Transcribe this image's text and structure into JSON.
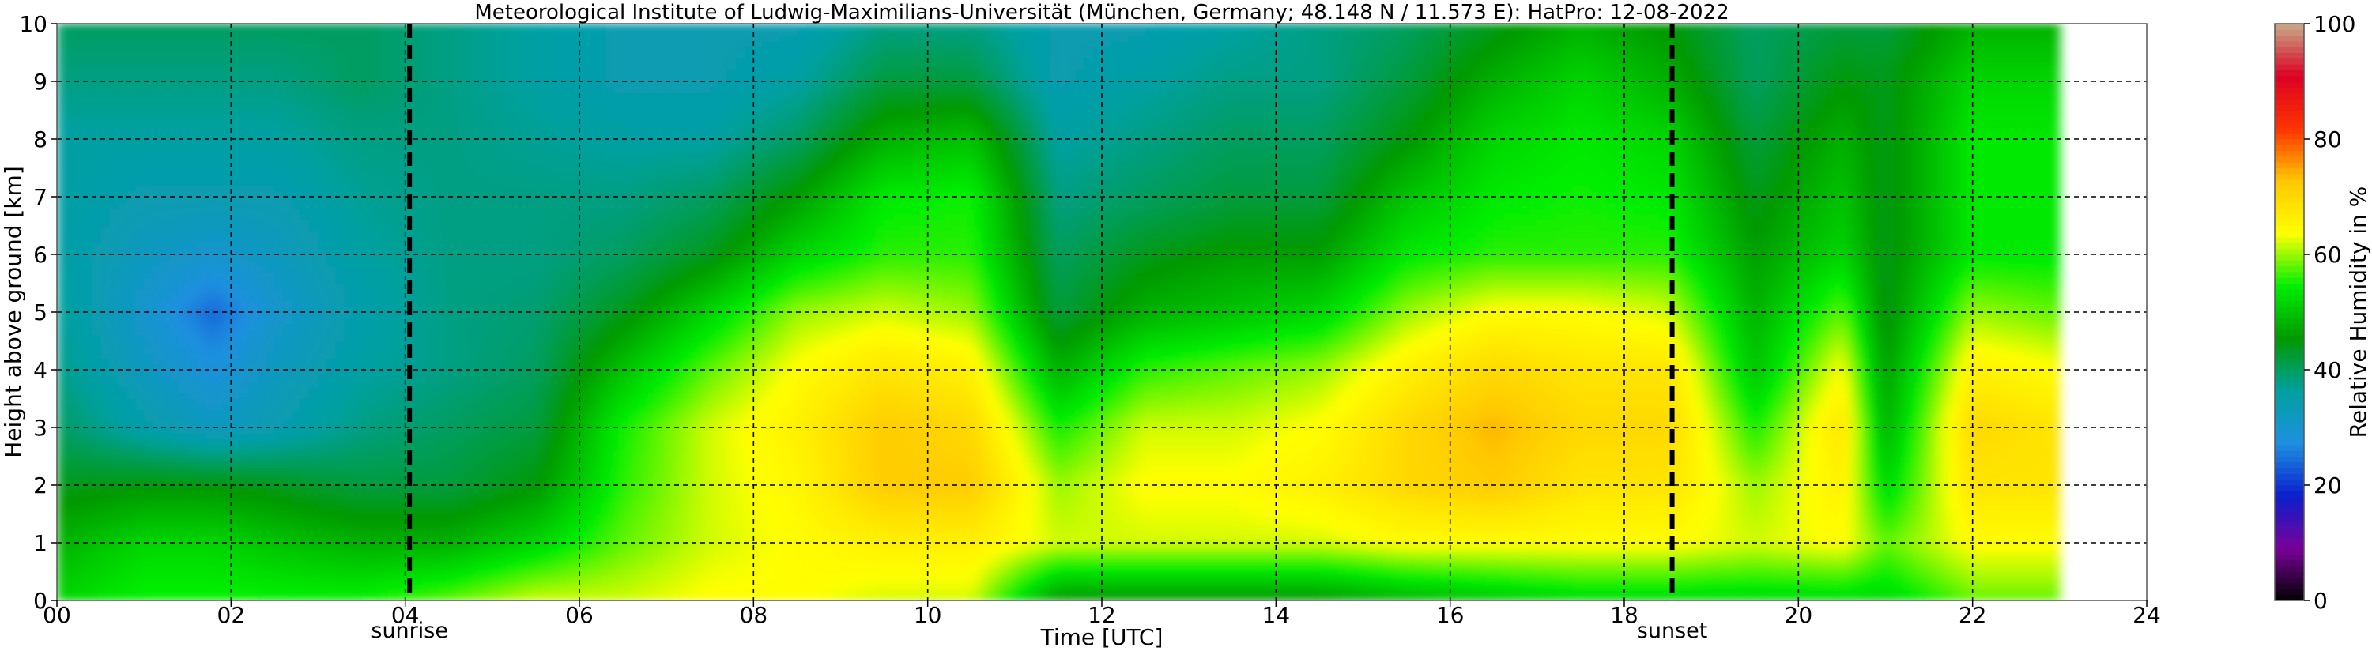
{
  "chart_data": {
    "type": "heatmap",
    "title": "Meteorological Institute of Ludwig-Maximilians-Universität (München, Germany; 48.148 N / 11.573 E):    HatPro: 12-08-2022",
    "xlabel": "Time [UTC]",
    "ylabel": "Height above ground [km]",
    "xlim": [
      0,
      24
    ],
    "ylim": [
      0,
      10
    ],
    "data_end_time": 23,
    "x_ticks": [
      "00",
      "02",
      "04",
      "06",
      "08",
      "10",
      "12",
      "14",
      "16",
      "18",
      "20",
      "22",
      "24"
    ],
    "y_ticks": [
      "0",
      "1",
      "2",
      "3",
      "4",
      "5",
      "6",
      "7",
      "8",
      "9",
      "10"
    ],
    "grid": true,
    "colorbar": {
      "label": "Relative Humidity in %",
      "range": [
        0,
        100
      ],
      "ticks": [
        "0",
        "20",
        "40",
        "60",
        "80",
        "100"
      ],
      "colors": [
        "#000000",
        "#7a0099",
        "#0a1fcc",
        "#1e90e0",
        "#00a0a0",
        "#009900",
        "#00ee00",
        "#ffff00",
        "#ffc800",
        "#ff3300",
        "#dd0022",
        "#c8aa88"
      ]
    },
    "events": [
      {
        "name": "sunrise",
        "time": 4.05
      },
      {
        "name": "sunset",
        "time": 18.55
      }
    ],
    "columns": [
      {
        "t": 0.0,
        "rh": [
          52,
          48,
          44,
          40,
          38,
          37,
          36,
          36,
          36,
          38,
          40
        ]
      },
      {
        "t": 1.0,
        "rh": [
          55,
          52,
          45,
          35,
          32,
          30,
          32,
          34,
          36,
          38,
          40
        ]
      },
      {
        "t": 1.8,
        "rh": [
          55,
          52,
          45,
          32,
          28,
          24,
          30,
          34,
          36,
          38,
          40
        ]
      },
      {
        "t": 2.5,
        "rh": [
          55,
          50,
          44,
          34,
          32,
          30,
          32,
          34,
          36,
          38,
          40
        ]
      },
      {
        "t": 3.5,
        "rh": [
          55,
          48,
          42,
          38,
          36,
          35,
          36,
          37,
          38,
          40,
          40
        ]
      },
      {
        "t": 4.5,
        "rh": [
          58,
          48,
          42,
          40,
          38,
          38,
          38,
          38,
          38,
          38,
          38
        ]
      },
      {
        "t": 5.5,
        "rh": [
          62,
          52,
          45,
          42,
          40,
          39,
          38,
          38,
          37,
          36,
          36
        ]
      },
      {
        "t": 6.5,
        "rh": [
          62,
          58,
          56,
          55,
          50,
          44,
          40,
          38,
          36,
          34,
          34
        ]
      },
      {
        "t": 7.5,
        "rh": [
          64,
          62,
          62,
          62,
          58,
          52,
          44,
          40,
          36,
          34,
          34
        ]
      },
      {
        "t": 8.5,
        "rh": [
          64,
          64,
          65,
          66,
          64,
          60,
          52,
          46,
          40,
          36,
          34
        ]
      },
      {
        "t": 9.5,
        "rh": [
          62,
          66,
          72,
          72,
          68,
          62,
          56,
          54,
          48,
          42,
          38
        ]
      },
      {
        "t": 10.5,
        "rh": [
          62,
          66,
          72,
          70,
          66,
          60,
          56,
          55,
          50,
          42,
          38
        ]
      },
      {
        "t": 11.5,
        "rh": [
          45,
          62,
          60,
          55,
          48,
          42,
          40,
          38,
          36,
          34,
          34
        ]
      },
      {
        "t": 12.5,
        "rh": [
          45,
          62,
          64,
          62,
          56,
          48,
          44,
          40,
          38,
          36,
          34
        ]
      },
      {
        "t": 13.5,
        "rh": [
          45,
          62,
          64,
          62,
          58,
          50,
          46,
          42,
          40,
          38,
          36
        ]
      },
      {
        "t": 14.5,
        "rh": [
          45,
          62,
          66,
          64,
          60,
          52,
          46,
          42,
          40,
          38,
          38
        ]
      },
      {
        "t": 15.5,
        "rh": [
          48,
          64,
          70,
          70,
          66,
          60,
          54,
          50,
          45,
          42,
          40
        ]
      },
      {
        "t": 16.5,
        "rh": [
          50,
          64,
          72,
          74,
          70,
          64,
          56,
          54,
          52,
          48,
          44
        ]
      },
      {
        "t": 17.5,
        "rh": [
          52,
          64,
          68,
          70,
          68,
          64,
          56,
          55,
          54,
          52,
          48
        ]
      },
      {
        "t": 18.5,
        "rh": [
          52,
          64,
          68,
          70,
          68,
          62,
          56,
          54,
          52,
          48,
          45
        ]
      },
      {
        "t": 19.5,
        "rh": [
          52,
          62,
          60,
          55,
          50,
          48,
          46,
          44,
          42,
          40,
          40
        ]
      },
      {
        "t": 20.5,
        "rh": [
          52,
          64,
          66,
          68,
          64,
          58,
          52,
          50,
          48,
          45,
          42
        ]
      },
      {
        "t": 21.0,
        "rh": [
          52,
          58,
          52,
          48,
          46,
          44,
          44,
          44,
          44,
          44,
          42
        ]
      },
      {
        "t": 22.0,
        "rh": [
          58,
          64,
          68,
          70,
          66,
          60,
          54,
          54,
          54,
          52,
          48
        ]
      },
      {
        "t": 23.0,
        "rh": [
          58,
          64,
          68,
          68,
          64,
          58,
          54,
          54,
          54,
          52,
          48
        ]
      }
    ]
  }
}
